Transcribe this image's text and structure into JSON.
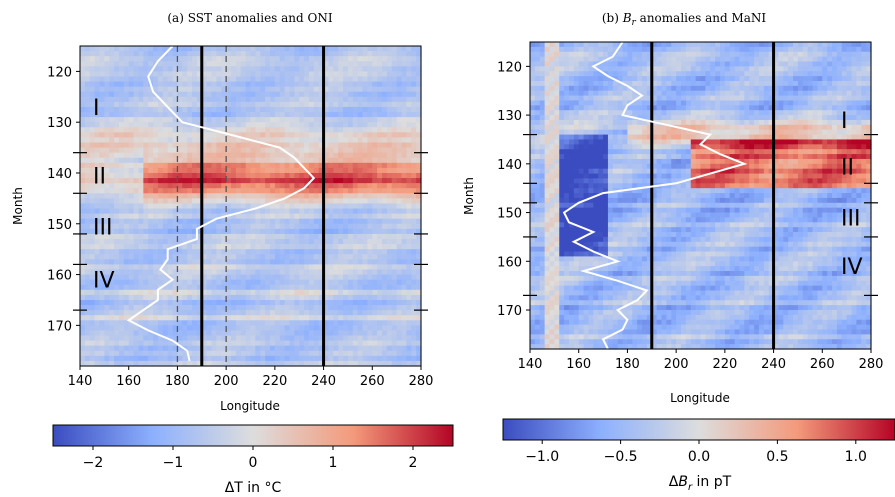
{
  "chart_data": [
    {
      "type": "heatmap",
      "title": "(a) SST anomalies and ONI",
      "xlabel": "Longitude",
      "ylabel": "Month",
      "xlim": [
        140,
        280
      ],
      "ylim": [
        115,
        178
      ],
      "xticks": [
        "140",
        "160",
        "180",
        "200",
        "220",
        "240",
        "260",
        "280"
      ],
      "yticks": [
        "120",
        "130",
        "140",
        "150",
        "160",
        "170"
      ],
      "colormap": "coolwarm",
      "colorbar": {
        "label": "ΔT in °C",
        "range": [
          -2.5,
          2.5
        ],
        "ticks": [
          "−2",
          "−1",
          "0",
          "1",
          "2"
        ]
      },
      "solid_lines_x": [
        190,
        240
      ],
      "dashed_lines_x": [
        180,
        200
      ],
      "regions": [
        {
          "label": "I",
          "month": 127
        },
        {
          "label": "II",
          "month": 140.5
        },
        {
          "label": "III",
          "month": 150.5
        },
        {
          "label": "IV",
          "month": 161
        }
      ],
      "index_curve": {
        "name": "ONI",
        "months": [
          115,
          118,
          121,
          124,
          127,
          130,
          133,
          135,
          137,
          139,
          141,
          143,
          145,
          147,
          149,
          151,
          153,
          155,
          157,
          159,
          161,
          163,
          165,
          167,
          169,
          171,
          173,
          175,
          177
        ],
        "longitude": [
          178,
          172,
          168,
          170,
          176,
          182,
          206,
          222,
          228,
          232,
          236,
          232,
          224,
          212,
          196,
          188,
          188,
          176,
          176,
          173,
          178,
          172,
          172,
          166,
          160,
          168,
          178,
          184,
          185
        ]
      }
    },
    {
      "type": "heatmap",
      "title": "(b) B_r anomalies and MaNI",
      "xlabel": "Longitude",
      "ylabel": "Month",
      "xlim": [
        140,
        280
      ],
      "ylim": [
        115,
        178
      ],
      "xticks": [
        "140",
        "160",
        "180",
        "200",
        "220",
        "240",
        "260",
        "280"
      ],
      "yticks": [
        "120",
        "130",
        "140",
        "150",
        "160",
        "170"
      ],
      "colormap": "coolwarm",
      "colorbar": {
        "label": "ΔB_r in pT",
        "range": [
          -1.25,
          1.25
        ],
        "ticks": [
          "−1.0",
          "−0.5",
          "0.0",
          "0.5",
          "1.0"
        ]
      },
      "solid_lines_x": [
        190,
        240
      ],
      "regions": [
        {
          "label": "I",
          "month": 131
        },
        {
          "label": "II",
          "month": 140.5
        },
        {
          "label": "III",
          "month": 151
        },
        {
          "label": "IV",
          "month": 161
        }
      ],
      "index_curve": {
        "name": "MaNI",
        "months": [
          115,
          118,
          120,
          122,
          124,
          126,
          128,
          130,
          132,
          134,
          136,
          138,
          140,
          142,
          144,
          146,
          148,
          150,
          152,
          154,
          156,
          158,
          160,
          162,
          164,
          166,
          168,
          170,
          172,
          174,
          176,
          178
        ],
        "longitude": [
          178,
          174,
          166,
          172,
          180,
          186,
          180,
          178,
          196,
          214,
          210,
          218,
          228,
          214,
          200,
          170,
          160,
          154,
          156,
          166,
          158,
          166,
          176,
          162,
          176,
          188,
          184,
          176,
          180,
          178,
          170,
          172
        ]
      }
    }
  ]
}
